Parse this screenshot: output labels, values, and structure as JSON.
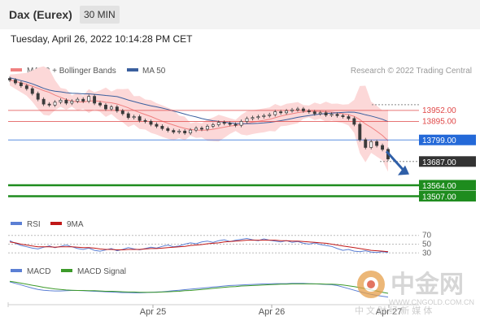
{
  "header": {
    "instrument": "Dax (Eurex)",
    "timeframe": "30 MIN"
  },
  "timestamp": "Tuesday, April 26, 2022 10:14:28 PM CET",
  "legend": {
    "ma20": "MA 20 + Bollinger Bands",
    "ma50": "MA 50",
    "rsi": "RSI",
    "rsi_ma": "9MA",
    "macd": "MACD",
    "macd_signal": "MACD Signal"
  },
  "credit": "Research © 2022 Trading Central",
  "watermark": {
    "brand": "中金网",
    "subtitle": "中 文 财 经 新 媒 体",
    "url": "WWW.CNGOLD.COM.CN"
  },
  "colors": {
    "ma20": "#f08080",
    "bollinger_fill": "#fcd8d8",
    "ma50": "#3a5f9e",
    "current_price": "#2469d8",
    "support": "#1e8c1e",
    "resistance": "#e04848",
    "candle": "#3a3a3a",
    "arrow": "#2f5fa8",
    "rsi": "#5b7fd4",
    "rsi_ma": "#c01818",
    "macd": "#5b7fd4",
    "macd_signal": "#3d9a2a"
  },
  "chart_data": [
    {
      "type": "candlestick",
      "panel": "price",
      "ylim": [
        13450,
        14230
      ],
      "x_tick_labels": [
        "Apr 25",
        "Apr 26",
        "Apr 27"
      ],
      "close": [
        14110,
        14095,
        14080,
        14065,
        14040,
        14010,
        13985,
        13980,
        13995,
        14005,
        13990,
        14000,
        14010,
        14000,
        14025,
        13990,
        13980,
        13960,
        13970,
        13950,
        13935,
        13915,
        13920,
        13900,
        13895,
        13880,
        13870,
        13858,
        13848,
        13840,
        13845,
        13835,
        13850,
        13860,
        13855,
        13870,
        13878,
        13890,
        13885,
        13880,
        13875,
        13895,
        13910,
        13915,
        13920,
        13925,
        13930,
        13945,
        13940,
        13950,
        13955,
        13960,
        13950,
        13945,
        13935,
        13940,
        13928,
        13932,
        13925,
        13920,
        13910,
        13880,
        13800,
        13760,
        13790,
        13770,
        13750,
        13700
      ],
      "levels": [
        {
          "label": "13952.00",
          "value": 13952,
          "kind": "resistance"
        },
        {
          "label": "13895.00",
          "value": 13895,
          "kind": "resistance"
        },
        {
          "label": "13799.00",
          "value": 13799,
          "kind": "current"
        },
        {
          "label": "13687.00",
          "value": 13687,
          "kind": "target"
        },
        {
          "label": "13564.00",
          "value": 13564,
          "kind": "support"
        },
        {
          "label": "13507.00",
          "value": 13507,
          "kind": "support"
        }
      ],
      "forecast_arrow": {
        "from": 13740,
        "to": 13620
      }
    },
    {
      "type": "line",
      "panel": "rsi",
      "ylim": [
        25,
        75
      ],
      "levels": [
        70,
        50,
        30
      ],
      "level_labels": [
        "70",
        "50",
        "30"
      ],
      "series": [
        {
          "name": "RSI",
          "values": [
            58,
            52,
            47,
            44,
            41,
            39,
            43,
            46,
            42,
            45,
            48,
            44,
            40,
            38,
            41,
            36,
            34,
            37,
            40,
            35,
            38,
            42,
            39,
            37,
            40,
            43,
            41,
            45,
            48,
            44,
            46,
            50,
            53,
            51,
            55,
            57,
            54,
            58,
            60,
            56,
            59,
            61,
            63,
            60,
            58,
            62,
            59,
            57,
            55,
            58,
            54,
            56,
            52,
            50,
            53,
            49,
            47,
            45,
            40,
            36,
            38,
            34,
            33,
            35,
            32,
            31,
            33,
            31
          ]
        },
        {
          "name": "9MA",
          "values": [
            55,
            53,
            50,
            48,
            46,
            44,
            44,
            44,
            43,
            44,
            44,
            44,
            43,
            42,
            42,
            41,
            39,
            38,
            38,
            37,
            37,
            38,
            38,
            38,
            39,
            40,
            40,
            41,
            42,
            43,
            44,
            45,
            47,
            48,
            49,
            51,
            52,
            53,
            55,
            56,
            57,
            58,
            59,
            59,
            59,
            59,
            59,
            59,
            58,
            58,
            57,
            57,
            56,
            55,
            54,
            53,
            52,
            50,
            48,
            46,
            44,
            42,
            40,
            38,
            36,
            35,
            34,
            33
          ]
        }
      ]
    },
    {
      "type": "line",
      "panel": "macd",
      "ylim": [
        -60,
        30
      ],
      "series": [
        {
          "name": "MACD",
          "values": [
            18,
            12,
            6,
            0,
            -6,
            -11,
            -14,
            -16,
            -17,
            -17,
            -16,
            -15,
            -15,
            -16,
            -17,
            -18,
            -19,
            -20,
            -21,
            -22,
            -23,
            -23,
            -24,
            -24,
            -23,
            -22,
            -21,
            -20,
            -18,
            -16,
            -14,
            -12,
            -10,
            -8,
            -6,
            -4,
            -2,
            0,
            2,
            4,
            5,
            6,
            7,
            8,
            9,
            10,
            10,
            11,
            11,
            11,
            12,
            12,
            12,
            11,
            10,
            9,
            8,
            7,
            4,
            -2,
            -8,
            -14,
            -20,
            -25,
            -30,
            -34,
            -37,
            -40
          ]
        },
        {
          "name": "MACD Signal",
          "values": [
            20,
            17,
            13,
            9,
            5,
            1,
            -3,
            -6,
            -9,
            -11,
            -13,
            -14,
            -15,
            -15,
            -16,
            -16,
            -17,
            -18,
            -18,
            -19,
            -20,
            -21,
            -21,
            -22,
            -22,
            -22,
            -22,
            -21,
            -20,
            -19,
            -18,
            -16,
            -15,
            -13,
            -11,
            -9,
            -7,
            -5,
            -3,
            -1,
            0,
            2,
            3,
            4,
            5,
            6,
            7,
            8,
            9,
            9,
            10,
            10,
            10,
            10,
            10,
            10,
            9,
            9,
            8,
            6,
            3,
            0,
            -4,
            -8,
            -13,
            -17,
            -22,
            -26
          ]
        }
      ]
    }
  ]
}
